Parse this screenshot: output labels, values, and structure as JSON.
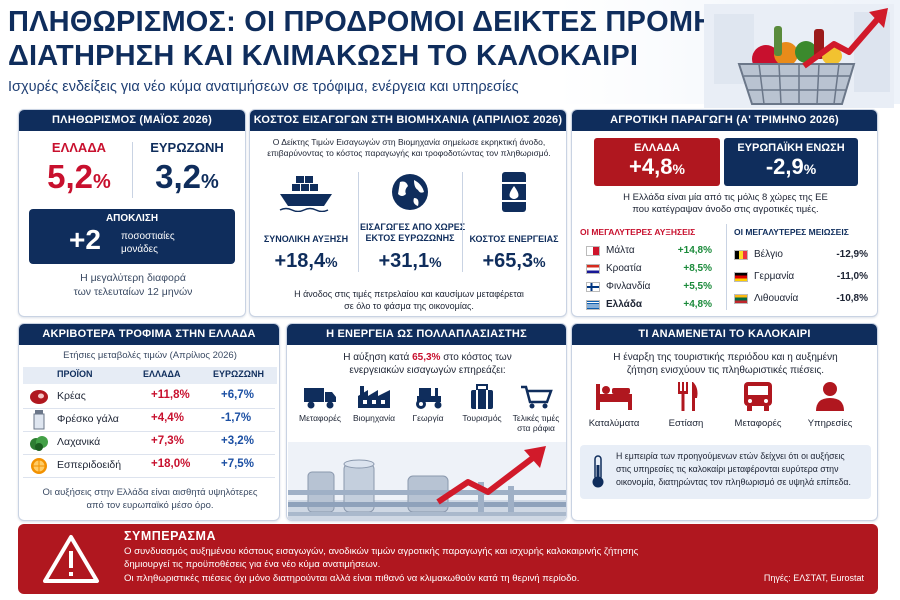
{
  "header": {
    "title_line1": "ΠΛΗΘΩΡΙΣΜΟΣ: ΟΙ ΠΡΟΔΡΟΜΟΙ ΔΕΙΚΤΕΣ ΠΡΟΜΗΝΥΟΥΝ",
    "title_line2": "ΔΙΑΤΗΡΗΣΗ ΚΑΙ ΚΛΙΜΑΚΩΣΗ ΤΟ ΚΑΛΟΚΑΙΡΙ",
    "subtitle": "Ισχυρές ενδείξεις για νέο κύμα ανατιμήσεων σε τρόφιμα, ενέργεια και υπηρεσίες",
    "hero_icon": "shopping-basket-with-rising-arrow"
  },
  "inflation_may": {
    "heading": "ΠΛΗΘΩΡΙΣΜΟΣ (ΜΑΪΟΣ 2026)",
    "greece_label": "ΕΛΛΑΔΑ",
    "greece_value": "5,2",
    "eurozone_label": "ΕΥΡΩΖΩΝΗ",
    "eurozone_value": "3,2",
    "pct": "%",
    "gap_label": "ΑΠΟΚΛΙΣΗ",
    "gap_value": "+2",
    "gap_unit_line1": "ποσοστιαίες",
    "gap_unit_line2": "μονάδες",
    "note_line1": "Η μεγαλύτερη διαφορά",
    "note_line2": "των τελευταίων 12 μηνών"
  },
  "import_costs": {
    "heading": "ΚΟΣΤΟΣ ΕΙΣΑΓΩΓΩΝ ΣΤΗ ΒΙΟΜΗΧΑΝΙΑ (ΑΠΡΙΛΙΟΣ 2026)",
    "intro_line1": "Ο Δείκτης Τιμών Εισαγωγών στη Βιομηχανία σημείωσε εκρηκτική άνοδο,",
    "intro_line2": "επιβαρύνοντας το κόστος παραγωγής και τροφοδοτώντας τον πληθωρισμό.",
    "stats": [
      {
        "icon": "cargo-ship-icon",
        "label_line1": "ΣΥΝΟΛΙΚΗ ΑΥΞΗΣΗ",
        "label_line2": "",
        "value": "+18,4"
      },
      {
        "icon": "globe-icon",
        "label_line1": "ΕΙΣΑΓΩΓΕΣ ΑΠΟ ΧΩΡΕΣ",
        "label_line2": "ΕΚΤΟΣ ΕΥΡΩΖΩΝΗΣ",
        "value": "+31,1"
      },
      {
        "icon": "oil-barrel-icon",
        "label_line1": "ΚΟΣΤΟΣ ΕΝΕΡΓΕΙΑΣ",
        "label_line2": "",
        "value": "+65,3"
      }
    ],
    "pct": "%",
    "note_line1": "Η άνοδος στις τιμές πετρελαίου και καυσίμων μεταφέρεται",
    "note_line2": "σε όλο το φάσμα της οικονομίας."
  },
  "agri": {
    "heading": "ΑΓΡΟΤΙΚΗ ΠΑΡΑΓΩΓΗ (Α' ΤΡΙΜΗΝΟ 2026)",
    "greece_label": "ΕΛΛΑΔΑ",
    "greece_value": "+4,8",
    "eu_label": "ΕΥΡΩΠΑΪΚΗ ΕΝΩΣΗ",
    "eu_value": "-2,9",
    "pct": "%",
    "note_line1": "Η Ελλάδα είναι μία από τις μόλις 8 χώρες της ΕΕ",
    "note_line2": "που κατέγραψαν άνοδο στις αγροτικές τιμές.",
    "increases_title": "ΟΙ ΜΕΓΑΛΥΤΕΡΕΣ ΑΥΞΗΣΕΙΣ",
    "increases": [
      {
        "country": "Μάλτα",
        "value": "+14,8%",
        "flag": "malta"
      },
      {
        "country": "Κροατία",
        "value": "+8,5%",
        "flag": "croatia"
      },
      {
        "country": "Φινλανδία",
        "value": "+5,5%",
        "flag": "finland"
      },
      {
        "country": "Ελλάδα",
        "value": "+4,8%",
        "flag": "greece"
      }
    ],
    "decreases_title": "ΟΙ ΜΕΓΑΛΥΤΕΡΕΣ ΜΕΙΩΣΕΙΣ",
    "decreases": [
      {
        "country": "Βέλγιο",
        "value": "-12,9%",
        "flag": "belgium"
      },
      {
        "country": "Γερμανία",
        "value": "-11,0%",
        "flag": "germany"
      },
      {
        "country": "Λιθουανία",
        "value": "-10,8%",
        "flag": "lithuania"
      }
    ]
  },
  "food": {
    "heading": "ΑΚΡΙΒΟΤΕΡΑ ΤΡΟΦΙΜΑ ΣΤΗΝ ΕΛΛΑΔΑ",
    "subheading": "Ετήσιες μεταβολές τιμών (Απρίλιος 2026)",
    "columns": [
      "ΠΡΟΪΟΝ",
      "ΕΛΛΑΔΑ",
      "ΕΥΡΩΖΩΝΗ"
    ],
    "rows": [
      {
        "icon": "meat-icon",
        "product": "Κρέας",
        "greece": "+11,8%",
        "eurozone": "+6,7%"
      },
      {
        "icon": "milk-icon",
        "product": "Φρέσκο γάλα",
        "greece": "+4,4%",
        "eurozone": "-1,7%"
      },
      {
        "icon": "vegetable-icon",
        "product": "Λαχανικά",
        "greece": "+7,3%",
        "eurozone": "+3,2%"
      },
      {
        "icon": "citrus-icon",
        "product": "Εσπεριδοειδή",
        "greece": "+18,0%",
        "eurozone": "+7,5%"
      }
    ],
    "note_line1": "Οι αυξήσεις στην Ελλάδα είναι αισθητά υψηλότερες",
    "note_line2": "από τον ευρωπαϊκό μέσο όρο."
  },
  "energy": {
    "heading": "Η ΕΝΕΡΓΕΙΑ ΩΣ ΠΟΛΛΑΠΛΑΣΙΑΣΤΗΣ",
    "intro_pre": "Η αύξηση κατά ",
    "intro_value": "65,3%",
    "intro_post": " στο κόστος των",
    "intro_line2": "ενεργειακών εισαγωγών επηρεάζει:",
    "sectors": [
      {
        "icon": "truck-icon",
        "label": "Μεταφορές",
        "label2": ""
      },
      {
        "icon": "factory-icon",
        "label": "Βιομηχανία",
        "label2": ""
      },
      {
        "icon": "tractor-icon",
        "label": "Γεωργία",
        "label2": ""
      },
      {
        "icon": "suitcase-icon",
        "label": "Τουρισμός",
        "label2": ""
      },
      {
        "icon": "cart-icon",
        "label": "Τελικές τιμές",
        "label2": "στα ράφια"
      }
    ]
  },
  "summer": {
    "heading": "ΤΙ ΑΝΑΜΕΝΕΤΑΙ ΤΟ ΚΑΛΟΚΑΙΡΙ",
    "intro_line1": "Η έναρξη της τουριστικής περιόδου και η αυξημένη",
    "intro_line2": "ζήτηση ενισχύουν τις πληθωριστικές πιέσεις.",
    "items": [
      {
        "icon": "bed-icon",
        "label": "Καταλύματα"
      },
      {
        "icon": "cutlery-icon",
        "label": "Εστίαση"
      },
      {
        "icon": "bus-icon",
        "label": "Μεταφορές"
      },
      {
        "icon": "person-icon",
        "label": "Υπηρεσίες"
      }
    ],
    "note_line1": "Η εμπειρία των προηγούμενων ετών δείχνει ότι οι αυξήσεις",
    "note_line2": "στις υπηρεσίες τις καλοκαίρι μεταφέρονται ευρύτερα στην",
    "note_line3": "οικονομία, διατηρώντας τον πληθωρισμό σε υψηλά επίπεδα."
  },
  "conclusion": {
    "title": "ΣΥΜΠΕΡΑΣΜΑ",
    "line1": "Ο συνδυασμός αυξημένου κόστους εισαγωγών, ανοδικών τιμών αγροτικής παραγωγής και ισχυρής καλοκαιρινής ζήτησης",
    "line2": "δημιουργεί τις προϋποθέσεις για ένα νέο κύμα ανατιμήσεων.",
    "line3": "Οι πληθωριστικές πιέσεις όχι μόνο διατηρούνται αλλά είναι πιθανό να κλιμακωθούν κατά τη θερινή περίοδο.",
    "sources": "Πηγές: ΕΛΣΤΑΤ, Eurostat"
  }
}
